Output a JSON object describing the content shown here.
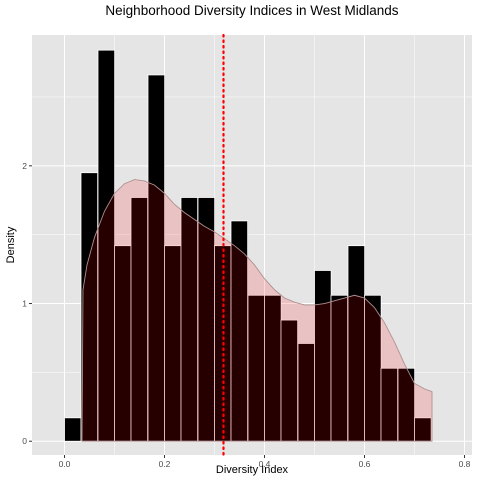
{
  "chart_data": {
    "type": "histogram",
    "title": "Neighborhood Diversity Indices in West Midlands",
    "xlabel": "Diversity Index",
    "ylabel": "Density",
    "xlim": [
      -0.065,
      0.815
    ],
    "ylim": [
      -0.1,
      2.95
    ],
    "x_ticks": [
      0.0,
      0.2,
      0.4,
      0.6,
      0.8
    ],
    "x_tick_labels": [
      "0.0",
      "0.2",
      "0.4",
      "0.6",
      "0.8"
    ],
    "y_ticks": [
      0,
      1,
      2
    ],
    "y_tick_labels": [
      "0",
      "1",
      "2"
    ],
    "bin_width": 0.0333,
    "bins": [
      {
        "x_start": 0.0,
        "density": 0.17
      },
      {
        "x_start": 0.033,
        "density": 1.95
      },
      {
        "x_start": 0.067,
        "density": 2.84
      },
      {
        "x_start": 0.1,
        "density": 1.42
      },
      {
        "x_start": 0.133,
        "density": 1.77
      },
      {
        "x_start": 0.167,
        "density": 2.66
      },
      {
        "x_start": 0.2,
        "density": 1.42
      },
      {
        "x_start": 0.233,
        "density": 1.77
      },
      {
        "x_start": 0.267,
        "density": 1.77
      },
      {
        "x_start": 0.3,
        "density": 1.42
      },
      {
        "x_start": 0.333,
        "density": 1.6
      },
      {
        "x_start": 0.367,
        "density": 1.06
      },
      {
        "x_start": 0.4,
        "density": 1.06
      },
      {
        "x_start": 0.433,
        "density": 0.88
      },
      {
        "x_start": 0.467,
        "density": 0.71
      },
      {
        "x_start": 0.5,
        "density": 1.24
      },
      {
        "x_start": 0.533,
        "density": 1.06
      },
      {
        "x_start": 0.567,
        "density": 1.42
      },
      {
        "x_start": 0.6,
        "density": 1.06
      },
      {
        "x_start": 0.633,
        "density": 0.53
      },
      {
        "x_start": 0.667,
        "density": 0.53
      },
      {
        "x_start": 0.7,
        "density": 0.17
      }
    ],
    "density_curve": {
      "x": [
        0.035,
        0.037,
        0.045,
        0.06,
        0.08,
        0.1,
        0.12,
        0.14,
        0.16,
        0.18,
        0.2,
        0.22,
        0.24,
        0.26,
        0.28,
        0.3,
        0.32,
        0.34,
        0.36,
        0.38,
        0.4,
        0.42,
        0.44,
        0.46,
        0.48,
        0.5,
        0.52,
        0.54,
        0.56,
        0.58,
        0.6,
        0.62,
        0.64,
        0.66,
        0.68,
        0.7,
        0.72,
        0.735
      ],
      "y": [
        0.0,
        1.1,
        1.28,
        1.48,
        1.67,
        1.8,
        1.87,
        1.9,
        1.89,
        1.86,
        1.8,
        1.72,
        1.66,
        1.61,
        1.56,
        1.52,
        1.47,
        1.42,
        1.36,
        1.28,
        1.18,
        1.1,
        1.04,
        1.01,
        0.99,
        0.99,
        1.0,
        1.02,
        1.04,
        1.06,
        1.04,
        0.97,
        0.86,
        0.72,
        0.56,
        0.42,
        0.38,
        0.36
      ]
    },
    "mean_line": {
      "x": 0.318,
      "color": "#ff0000",
      "style": "dotted"
    },
    "colors": {
      "panel_background": "#e5e5e5",
      "grid_major": "#ffffff",
      "bar_fill": "#000000",
      "bar_outline": "#ffffff",
      "density_fill": "#ff0000",
      "density_fill_opacity": 0.15,
      "density_outline": "#b09090"
    },
    "grid": true,
    "legend": "none"
  }
}
